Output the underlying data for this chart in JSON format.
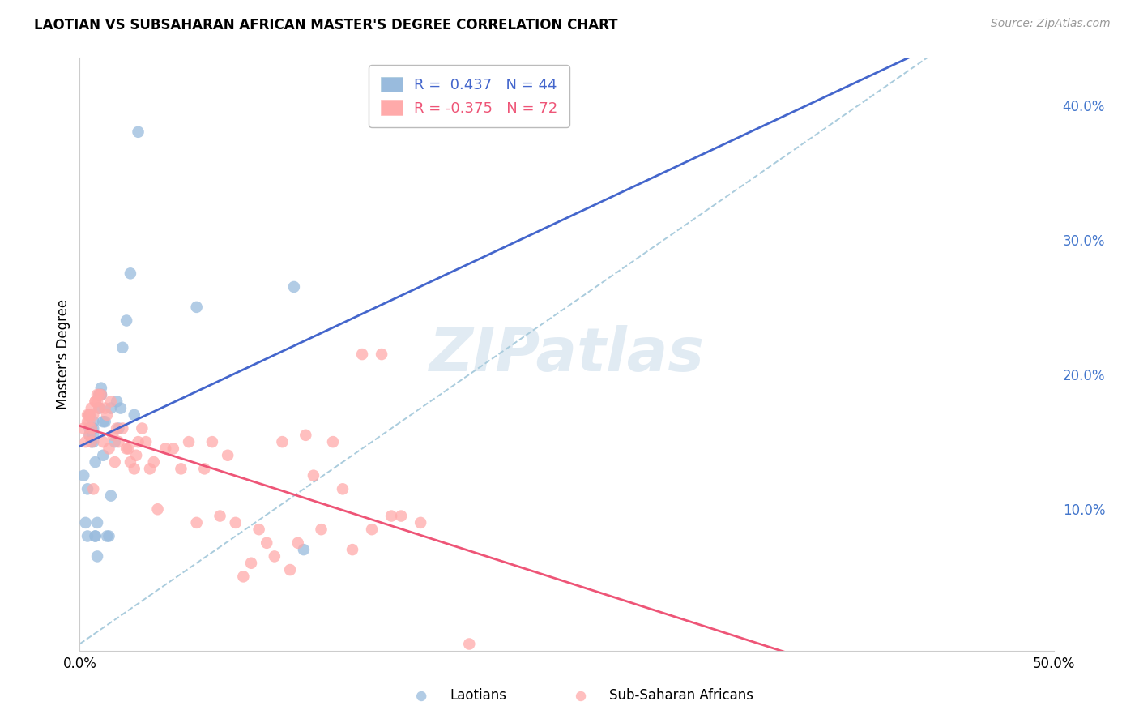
{
  "title": "LAOTIAN VS SUBSAHARAN AFRICAN MASTER'S DEGREE CORRELATION CHART",
  "source": "Source: ZipAtlas.com",
  "ylabel": "Master's Degree",
  "xmin": 0.0,
  "xmax": 0.5,
  "ymin": -0.005,
  "ymax": 0.435,
  "yticks": [
    0.1,
    0.2,
    0.3,
    0.4
  ],
  "ytick_labels": [
    "10.0%",
    "20.0%",
    "30.0%",
    "40.0%"
  ],
  "xticks": [
    0.0,
    0.1,
    0.2,
    0.3,
    0.4,
    0.5
  ],
  "xtick_labels": [
    "0.0%",
    "",
    "",
    "",
    "",
    "50.0%"
  ],
  "watermark": "ZIPatlas",
  "legend_r1": "R =  0.437   N = 44",
  "legend_r2": "R = -0.375   N = 72",
  "blue_scatter_color": "#99BBDD",
  "pink_scatter_color": "#FFAAAA",
  "blue_line_color": "#4466CC",
  "pink_line_color": "#EE5577",
  "diagonal_line_color": "#AACCDD",
  "tick_color": "#4477CC",
  "grid_color": "#DDDDDD",
  "laotian_x": [
    0.002,
    0.003,
    0.004,
    0.004,
    0.005,
    0.005,
    0.005,
    0.006,
    0.006,
    0.006,
    0.006,
    0.007,
    0.007,
    0.007,
    0.007,
    0.008,
    0.008,
    0.008,
    0.009,
    0.009,
    0.01,
    0.01,
    0.011,
    0.011,
    0.011,
    0.012,
    0.012,
    0.013,
    0.014,
    0.015,
    0.016,
    0.016,
    0.018,
    0.019,
    0.02,
    0.021,
    0.022,
    0.024,
    0.026,
    0.028,
    0.03,
    0.06,
    0.11,
    0.115
  ],
  "laotian_y": [
    0.125,
    0.09,
    0.08,
    0.115,
    0.16,
    0.155,
    0.17,
    0.15,
    0.16,
    0.16,
    0.16,
    0.15,
    0.16,
    0.155,
    0.165,
    0.135,
    0.08,
    0.08,
    0.065,
    0.09,
    0.175,
    0.185,
    0.185,
    0.185,
    0.19,
    0.14,
    0.165,
    0.165,
    0.08,
    0.08,
    0.175,
    0.11,
    0.15,
    0.18,
    0.16,
    0.175,
    0.22,
    0.24,
    0.275,
    0.17,
    0.38,
    0.25,
    0.265,
    0.07
  ],
  "subsaharan_x": [
    0.002,
    0.003,
    0.004,
    0.004,
    0.005,
    0.005,
    0.005,
    0.005,
    0.006,
    0.006,
    0.006,
    0.007,
    0.007,
    0.008,
    0.008,
    0.009,
    0.009,
    0.01,
    0.01,
    0.011,
    0.012,
    0.013,
    0.014,
    0.015,
    0.016,
    0.017,
    0.018,
    0.019,
    0.02,
    0.022,
    0.024,
    0.025,
    0.026,
    0.028,
    0.029,
    0.03,
    0.032,
    0.034,
    0.036,
    0.038,
    0.04,
    0.044,
    0.048,
    0.052,
    0.056,
    0.06,
    0.064,
    0.068,
    0.072,
    0.076,
    0.08,
    0.084,
    0.088,
    0.092,
    0.096,
    0.1,
    0.104,
    0.108,
    0.112,
    0.116,
    0.12,
    0.124,
    0.13,
    0.135,
    0.14,
    0.145,
    0.15,
    0.155,
    0.16,
    0.165,
    0.175,
    0.2
  ],
  "subsaharan_y": [
    0.16,
    0.15,
    0.17,
    0.165,
    0.155,
    0.17,
    0.17,
    0.165,
    0.15,
    0.16,
    0.175,
    0.17,
    0.115,
    0.18,
    0.18,
    0.185,
    0.18,
    0.185,
    0.175,
    0.185,
    0.15,
    0.175,
    0.17,
    0.145,
    0.18,
    0.155,
    0.135,
    0.16,
    0.15,
    0.16,
    0.145,
    0.145,
    0.135,
    0.13,
    0.14,
    0.15,
    0.16,
    0.15,
    0.13,
    0.135,
    0.1,
    0.145,
    0.145,
    0.13,
    0.15,
    0.09,
    0.13,
    0.15,
    0.095,
    0.14,
    0.09,
    0.05,
    0.06,
    0.085,
    0.075,
    0.065,
    0.15,
    0.055,
    0.075,
    0.155,
    0.125,
    0.085,
    0.15,
    0.115,
    0.07,
    0.215,
    0.085,
    0.215,
    0.095,
    0.095,
    0.09,
    0.0
  ]
}
